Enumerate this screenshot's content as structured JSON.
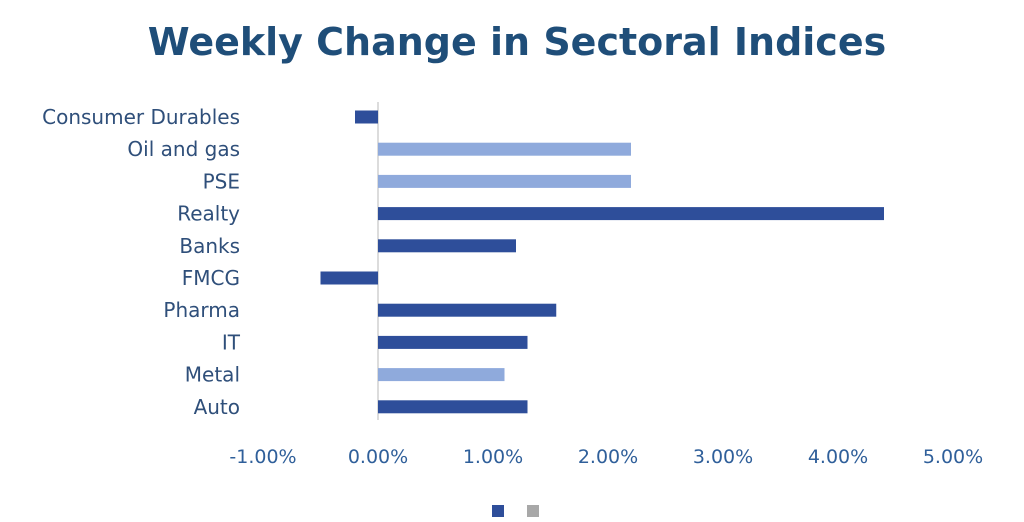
{
  "chart_data": {
    "type": "bar",
    "orientation": "horizontal",
    "title": "Weekly Change in Sectoral Indices",
    "xlabel": "",
    "ylabel": "",
    "categories": [
      "Consumer Durables",
      "Oil and gas",
      "PSE",
      "Realty",
      "Banks",
      "FMCG",
      "Pharma",
      "IT",
      "Metal",
      "Auto"
    ],
    "values": [
      -0.2,
      2.2,
      2.2,
      4.4,
      1.2,
      -0.5,
      1.55,
      1.3,
      1.1,
      1.3
    ],
    "series_index": [
      0,
      1,
      1,
      0,
      0,
      0,
      0,
      0,
      1,
      0
    ],
    "xlim": [
      -1,
      5
    ],
    "xticks": [
      "-1.00%",
      "0.00%",
      "1.00%",
      "2.00%",
      "3.00%",
      "4.00%",
      "5.00%"
    ],
    "grid": false,
    "legend": {
      "position": "bottom",
      "colors": [
        "#2e4e9a",
        "#a8a8a8"
      ]
    },
    "colors": {
      "series_dark": "#2e4e9a",
      "series_light": "#8faadc",
      "zero_line": "#d0d0d0",
      "title": "#1f4e79"
    }
  }
}
